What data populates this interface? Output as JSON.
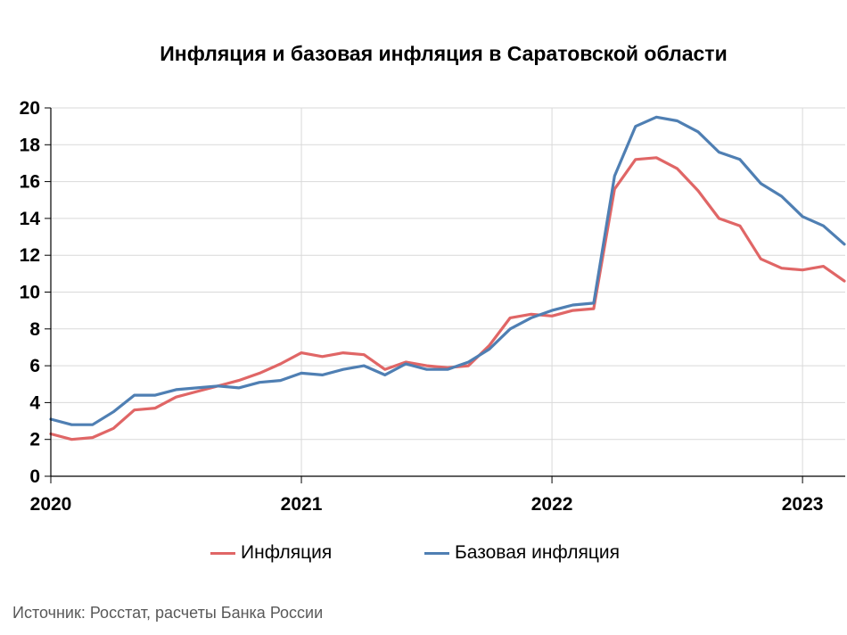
{
  "title": "Инфляция и базовая инфляция в Саратовской области",
  "source": "Источник: Росстат, расчеты Банка России",
  "colors": {
    "inflation": "#e06666",
    "core": "#4f7fb3",
    "grid": "#d9d9d9",
    "axis": "#000000"
  },
  "chart_data": {
    "type": "line",
    "title": "Инфляция и базовая инфляция в Саратовской области",
    "xlabel": "",
    "ylabel": "",
    "ylim": [
      0,
      20
    ],
    "yticks": [
      0,
      2,
      4,
      6,
      8,
      10,
      12,
      14,
      16,
      18,
      20
    ],
    "x_labels": [
      "2020",
      "2021",
      "2022",
      "2023"
    ],
    "x_start": "2020-01",
    "x_end": "2023-02",
    "grid": true,
    "legend_position": "bottom",
    "series": [
      {
        "name": "Инфляция",
        "color": "#e06666",
        "values": [
          2.3,
          2.0,
          2.1,
          2.6,
          3.6,
          3.7,
          4.3,
          4.6,
          4.9,
          5.2,
          5.6,
          6.1,
          6.7,
          6.5,
          6.7,
          6.6,
          5.8,
          6.2,
          6.0,
          5.9,
          6.0,
          7.1,
          8.6,
          8.8,
          8.7,
          9.0,
          9.1,
          15.6,
          17.2,
          17.3,
          16.7,
          15.5,
          14.0,
          13.6,
          11.8,
          11.3,
          11.2,
          11.4,
          10.6
        ]
      },
      {
        "name": "Базовая инфляция",
        "color": "#4f7fb3",
        "values": [
          3.1,
          2.8,
          2.8,
          3.5,
          4.4,
          4.4,
          4.7,
          4.8,
          4.9,
          4.8,
          5.1,
          5.2,
          5.6,
          5.5,
          5.8,
          6.0,
          5.5,
          6.1,
          5.8,
          5.8,
          6.2,
          6.9,
          8.0,
          8.6,
          9.0,
          9.3,
          9.4,
          16.3,
          19.0,
          19.5,
          19.3,
          18.7,
          17.6,
          17.2,
          15.9,
          15.2,
          14.1,
          13.6,
          12.6
        ]
      }
    ]
  }
}
